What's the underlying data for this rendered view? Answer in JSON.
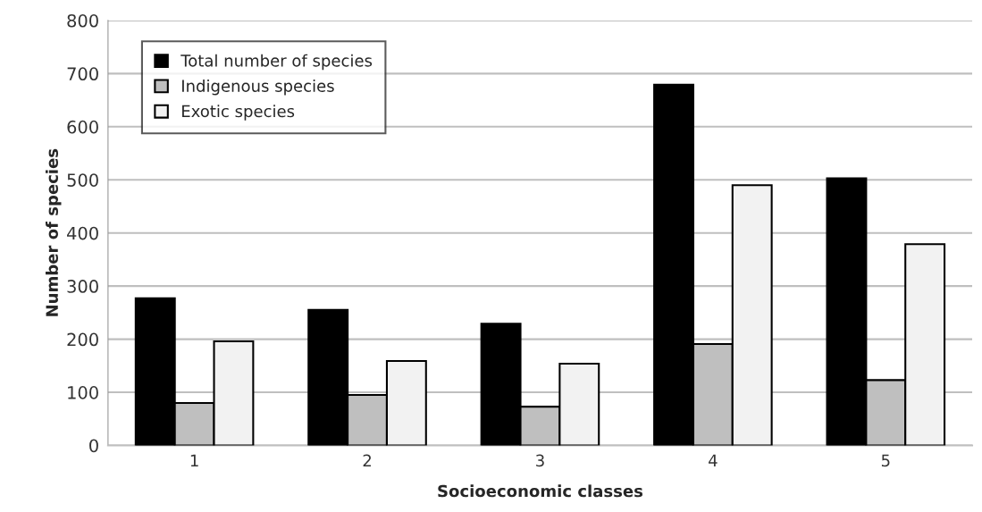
{
  "chart_data": {
    "type": "bar",
    "xlabel": "Socioeconomic classes",
    "ylabel": "Number of species",
    "categories": [
      "1",
      "2",
      "3",
      "4",
      "5"
    ],
    "series": [
      {
        "name": "Total number of species",
        "color": "#000000",
        "values": [
          277,
          255,
          229,
          679,
          503
        ]
      },
      {
        "name": "Indigenous species",
        "color": "#bfbfbf",
        "values": [
          80,
          95,
          73,
          191,
          123
        ]
      },
      {
        "name": "Exotic species",
        "color": "#f2f2f2",
        "values": [
          196,
          159,
          154,
          490,
          379
        ]
      }
    ],
    "ylim": [
      0,
      800
    ],
    "yticks": [
      0,
      100,
      200,
      300,
      400,
      500,
      600,
      700,
      800
    ],
    "grid": "y",
    "legend": "top left"
  }
}
